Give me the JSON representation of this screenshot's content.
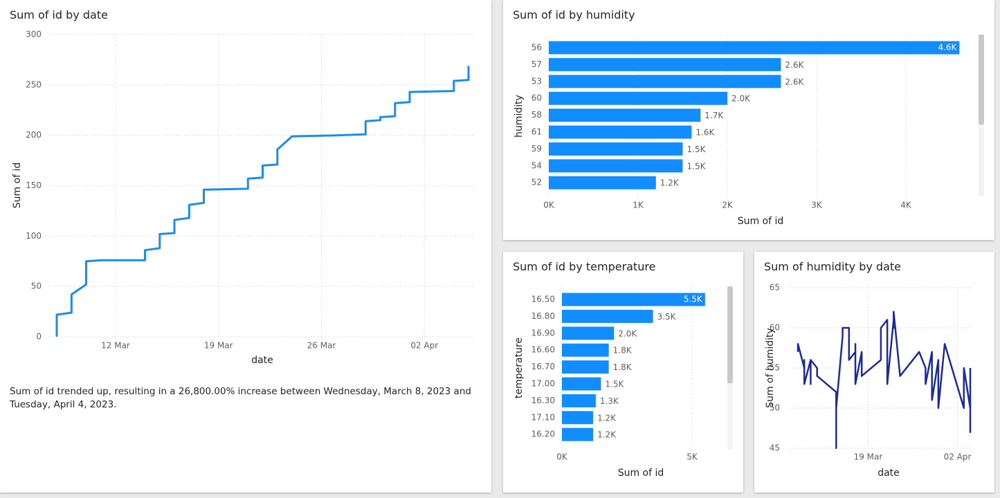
{
  "colors": {
    "bar": "#118dff",
    "line_blue": "#1a8cf0",
    "line_navy": "#1a2a9e",
    "grid": "#c8c8c8",
    "axis_text": "#605e5c"
  },
  "cumulative_chart": {
    "title": "Sum of id by date",
    "narrative": "Sum of id trended up, resulting in a 26,800.00% increase between Wednesday, March 8, 2023 and Tuesday, April 4, 2023."
  },
  "humidity_bar": {
    "title": "Sum of id by humidity",
    "scrollbar": "vertical-scrollbar"
  },
  "temperature_bar": {
    "title": "Sum of id by temperature",
    "scrollbar": "vertical-scrollbar"
  },
  "humidity_line": {
    "title": "Sum of humidity by date"
  },
  "chart_data": [
    {
      "id": "cumulative",
      "type": "line",
      "title": "Sum of id by date",
      "xlabel": "date",
      "ylabel": "Sum of id",
      "x_ticks": [
        "12 Mar",
        "19 Mar",
        "26 Mar",
        "02 Apr"
      ],
      "y_ticks": [
        0,
        50,
        100,
        150,
        200,
        250,
        300
      ],
      "ylim": [
        0,
        300
      ],
      "grid": true,
      "series": [
        {
          "x": [
            "2023-03-08",
            "2023-03-08",
            "2023-03-09",
            "2023-03-09",
            "2023-03-09",
            "2023-03-10",
            "2023-03-10",
            "2023-03-10",
            "2023-03-10",
            "2023-03-11",
            "2023-03-14",
            "2023-03-14",
            "2023-03-15",
            "2023-03-15",
            "2023-03-16",
            "2023-03-16",
            "2023-03-17",
            "2023-03-17",
            "2023-03-18",
            "2023-03-18",
            "2023-03-21",
            "2023-03-21",
            "2023-03-22",
            "2023-03-22",
            "2023-03-23",
            "2023-03-23",
            "2023-03-24",
            "2023-03-27",
            "2023-03-29",
            "2023-03-29",
            "2023-03-30",
            "2023-03-30",
            "2023-03-31",
            "2023-03-31",
            "2023-04-01",
            "2023-04-01",
            "2023-04-04",
            "2023-04-04",
            "2023-04-05",
            "2023-04-05"
          ],
          "values": [
            1,
            22,
            24,
            32,
            42,
            52,
            53,
            69,
            75,
            76,
            76,
            86,
            88,
            102,
            103,
            116,
            118,
            131,
            133,
            146,
            147,
            157,
            158,
            170,
            171,
            186,
            199,
            200,
            201,
            214,
            215,
            218,
            219,
            232,
            233,
            243,
            244,
            254,
            255,
            268
          ]
        }
      ]
    },
    {
      "id": "by_humidity",
      "type": "bar",
      "orientation": "horizontal",
      "title": "Sum of id by humidity",
      "xlabel": "Sum of id",
      "ylabel": "humidity",
      "categories": [
        "56",
        "57",
        "53",
        "60",
        "58",
        "61",
        "59",
        "54",
        "52"
      ],
      "values": [
        4600,
        2600,
        2600,
        2000,
        1700,
        1600,
        1500,
        1500,
        1200
      ],
      "data_labels": [
        "4.6K",
        "2.6K",
        "2.6K",
        "2.0K",
        "1.7K",
        "1.6K",
        "1.5K",
        "1.5K",
        "1.2K"
      ],
      "x_ticks": [
        "0K",
        "1K",
        "2K",
        "3K",
        "4K"
      ],
      "xlim": [
        0,
        4000
      ],
      "grid": true
    },
    {
      "id": "by_temperature",
      "type": "bar",
      "orientation": "horizontal",
      "title": "Sum of id by temperature",
      "xlabel": "Sum of id",
      "ylabel": "temperature",
      "categories": [
        "16.50",
        "16.80",
        "16.90",
        "16.60",
        "16.70",
        "17.00",
        "16.30",
        "17.10",
        "16.20"
      ],
      "values": [
        5500,
        3500,
        2000,
        1800,
        1800,
        1500,
        1300,
        1200,
        1200
      ],
      "data_labels": [
        "5.5K",
        "3.5K",
        "2.0K",
        "1.8K",
        "1.8K",
        "1.5K",
        "1.3K",
        "1.2K",
        "1.2K"
      ],
      "x_ticks": [
        "0K",
        "5K"
      ],
      "xlim": [
        0,
        5000
      ],
      "grid": true
    },
    {
      "id": "humidity_by_date",
      "type": "line",
      "title": "Sum of humidity by date",
      "xlabel": "date",
      "ylabel": "Sum of humidity",
      "x_ticks": [
        "19 Mar",
        "02 Apr"
      ],
      "y_ticks": [
        45,
        50,
        55,
        60,
        65
      ],
      "ylim": [
        45,
        65
      ],
      "grid": true,
      "series": [
        {
          "x": [
            "2023-03-08",
            "2023-03-08",
            "2023-03-09",
            "2023-03-09",
            "2023-03-09",
            "2023-03-10",
            "2023-03-10",
            "2023-03-10",
            "2023-03-11",
            "2023-03-11",
            "2023-03-14",
            "2023-03-14",
            "2023-03-14",
            "2023-03-15",
            "2023-03-15",
            "2023-03-16",
            "2023-03-16",
            "2023-03-17",
            "2023-03-17",
            "2023-03-17",
            "2023-03-18",
            "2023-03-18",
            "2023-03-21",
            "2023-03-21",
            "2023-03-22",
            "2023-03-22",
            "2023-03-23",
            "2023-03-23",
            "2023-03-23",
            "2023-03-24",
            "2023-03-27",
            "2023-03-28",
            "2023-03-28",
            "2023-03-29",
            "2023-03-29",
            "2023-03-30",
            "2023-03-30",
            "2023-03-31",
            "2023-04-03",
            "2023-04-03",
            "2023-04-04",
            "2023-04-04",
            "2023-04-04"
          ],
          "values": [
            57,
            58,
            55,
            56,
            53,
            56,
            53,
            56,
            55,
            54,
            52,
            45,
            50,
            59,
            60,
            60,
            56,
            57,
            58,
            53,
            57,
            54,
            56,
            60,
            61,
            53,
            61,
            60,
            62,
            54,
            57,
            55,
            53,
            57,
            51,
            56,
            50,
            58,
            50,
            55,
            50,
            47,
            55
          ]
        }
      ]
    }
  ]
}
